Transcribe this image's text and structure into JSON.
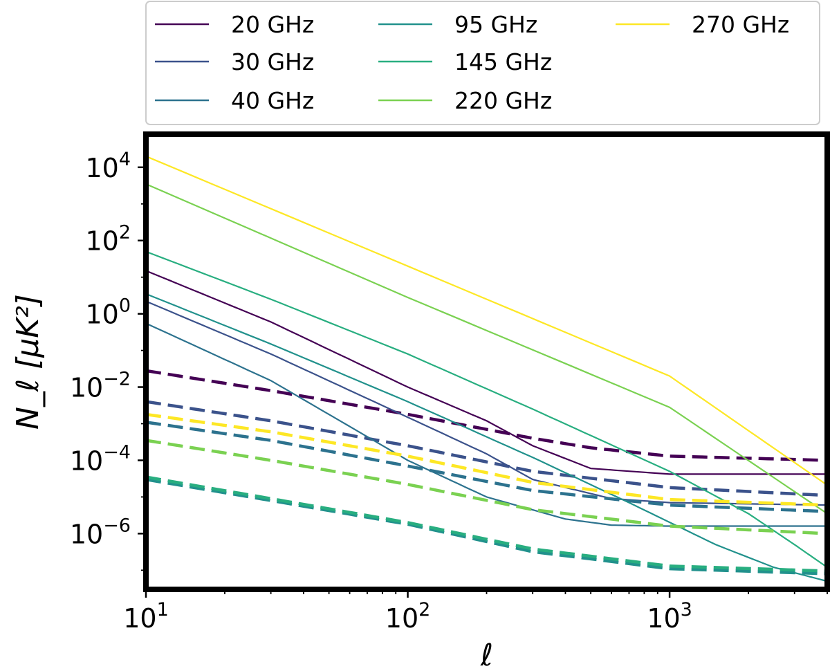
{
  "chart_data": {
    "type": "line",
    "title": "",
    "xlabel": "ℓ",
    "ylabel": "N_ℓ [μK²]",
    "xscale": "log",
    "yscale": "log",
    "xlim": [
      10,
      4000
    ],
    "ylim": [
      3e-08,
      80000.0
    ],
    "legend_position": "top",
    "x_ticks": [
      {
        "value": 10,
        "base": "10",
        "exp": "1"
      },
      {
        "value": 100,
        "base": "10",
        "exp": "2"
      },
      {
        "value": 1000,
        "base": "10",
        "exp": "3"
      }
    ],
    "y_ticks": [
      {
        "value": 10000.0,
        "base": "10",
        "exp": "4"
      },
      {
        "value": 100.0,
        "base": "10",
        "exp": "2"
      },
      {
        "value": 1,
        "base": "10",
        "exp": "0"
      },
      {
        "value": 0.01,
        "base": "10",
        "exp": "−2"
      },
      {
        "value": 0.0001,
        "base": "10",
        "exp": "−4"
      },
      {
        "value": 1e-06,
        "base": "10",
        "exp": "−6"
      }
    ],
    "series": [
      {
        "name": "20 GHz",
        "color": "#440154",
        "solid": {
          "x": [
            10,
            30,
            100,
            200,
            300,
            500,
            1000,
            4000
          ],
          "y": [
            15,
            0.6,
            0.01,
            0.0012,
            0.00025,
            6e-05,
            4.2e-05,
            4.2e-05
          ]
        },
        "dashed": {
          "x": [
            10,
            30,
            100,
            200,
            300,
            500,
            1000,
            4000
          ],
          "y": [
            0.028,
            0.008,
            0.0018,
            0.0007,
            0.0004,
            0.00022,
            0.00013,
            0.0001
          ]
        }
      },
      {
        "name": "30 GHz",
        "color": "#3b528b",
        "solid": {
          "x": [
            10,
            30,
            100,
            200,
            300,
            600,
            1000,
            4000
          ],
          "y": [
            2.2,
            0.08,
            0.0015,
            0.00015,
            3e-05,
            9e-06,
            7e-06,
            6e-06
          ]
        },
        "dashed": {
          "x": [
            10,
            30,
            100,
            300,
            1000,
            4000
          ],
          "y": [
            0.004,
            0.0012,
            0.00025,
            5e-05,
            1.8e-05,
            1.1e-05
          ]
        }
      },
      {
        "name": "40 GHz",
        "color": "#2c728e",
        "solid": {
          "x": [
            10,
            30,
            100,
            200,
            400,
            600,
            1000,
            4000
          ],
          "y": [
            0.55,
            0.015,
            0.0001,
            1e-05,
            2.5e-06,
            1.7e-06,
            1.6e-06,
            1.6e-06
          ]
        },
        "dashed": {
          "x": [
            10,
            30,
            100,
            300,
            1000,
            4000
          ],
          "y": [
            0.0011,
            0.00035,
            7e-05,
            1.5e-05,
            6e-06,
            4e-06
          ]
        }
      },
      {
        "name": "95 GHz",
        "color": "#21918c",
        "solid": {
          "x": [
            10,
            30,
            100,
            300,
            700,
            1500,
            2500,
            4000
          ],
          "y": [
            3.5,
            0.15,
            0.004,
            0.00012,
            7e-06,
            5e-07,
            1.2e-07,
            5e-08
          ]
        },
        "dashed": {
          "x": [
            10,
            30,
            100,
            300,
            1000,
            4000
          ],
          "y": [
            3e-05,
            8e-06,
            1.8e-06,
            3.2e-07,
            1.1e-07,
            8e-08
          ]
        }
      },
      {
        "name": "145 GHz",
        "color": "#28ae80",
        "solid": {
          "x": [
            10,
            30,
            100,
            300,
            1000,
            2000,
            3000,
            4000
          ],
          "y": [
            50,
            2.5,
            0.08,
            0.0025,
            5e-05,
            3.5e-06,
            5e-07,
            1.2e-07
          ]
        },
        "dashed": {
          "x": [
            10,
            30,
            100,
            300,
            1000,
            4000
          ],
          "y": [
            3.5e-05,
            9e-06,
            2e-06,
            3.8e-07,
            1.3e-07,
            9.5e-08
          ]
        }
      },
      {
        "name": "220 GHz",
        "color": "#7ad151",
        "solid": {
          "x": [
            10,
            100,
            1000,
            4000
          ],
          "y": [
            3500,
            2.8,
            0.0028,
            3.5e-06
          ]
        },
        "dashed": {
          "x": [
            10,
            30,
            100,
            300,
            1000,
            4000
          ],
          "y": [
            0.00035,
            0.0001,
            2.2e-05,
            4.5e-06,
            1.6e-06,
            1e-06
          ]
        }
      },
      {
        "name": "270 GHz",
        "color": "#fde725",
        "solid": {
          "x": [
            10,
            100,
            1000,
            4000
          ],
          "y": [
            20000,
            20,
            0.02,
            2.1e-05
          ]
        },
        "dashed": {
          "x": [
            10,
            30,
            100,
            300,
            1000,
            4000
          ],
          "y": [
            0.0018,
            0.0006,
            0.00013,
            2.5e-05,
            8.5e-06,
            6e-06
          ]
        }
      }
    ]
  }
}
